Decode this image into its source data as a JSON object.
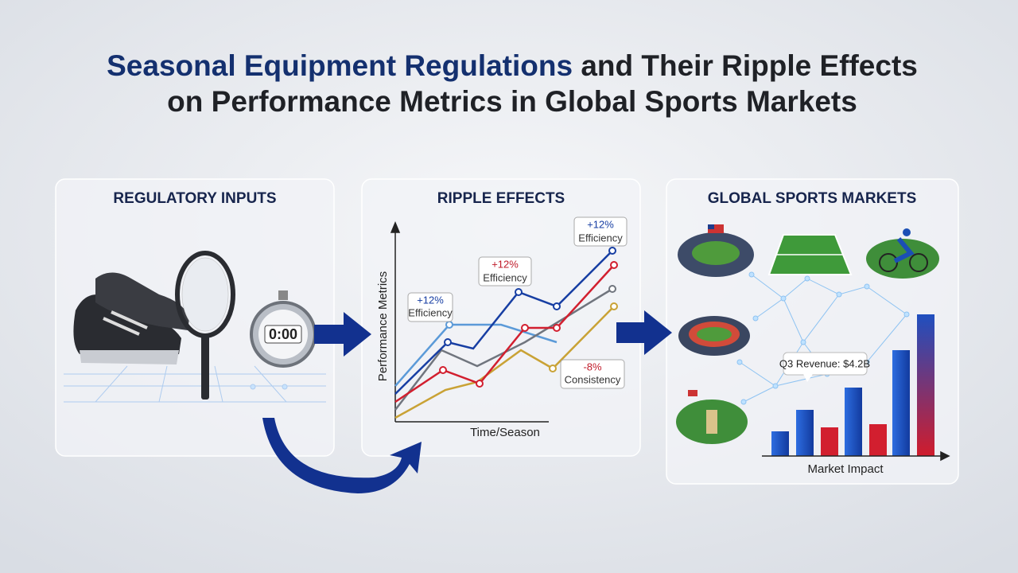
{
  "header": {
    "title_highlight": "Seasonal Equipment Regulations",
    "title_rest_line1": "and Their Ripple Effects",
    "title_line2": "on Performance Metrics in Global Sports Markets"
  },
  "panels": [
    {
      "heading": "REGULATORY INPUTS",
      "timer": "0:00"
    },
    {
      "heading": "RIPPLE EFFECTS",
      "y_axis_label": "Performance Metrics",
      "x_axis_label": "Time/Season",
      "annotations": [
        {
          "value": "+12%",
          "label": "Efficiency"
        },
        {
          "value": "+12%",
          "label": "Efficiency"
        },
        {
          "value": "+12%",
          "label": "Efficiency"
        },
        {
          "value": "-8%",
          "label": "Consistency"
        }
      ]
    },
    {
      "heading": "GLOBAL SPORTS MARKETS",
      "callout": "Q3 Revenue: $4.2B",
      "x_axis_label": "Market Impact"
    }
  ]
}
